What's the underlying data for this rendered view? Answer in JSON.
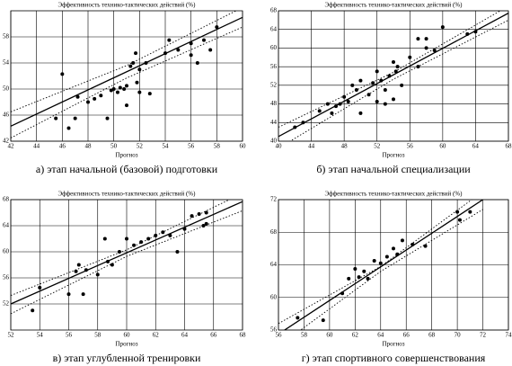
{
  "chart_data": [
    {
      "type": "scatter",
      "title": "а) этап начальной (базовой) подготовки",
      "ylabel": "Эффективность технико-тактических действий (%)",
      "xlabel": "Прогноз",
      "color": "#000000",
      "grid": true,
      "xlim": [
        42,
        60
      ],
      "xticks": [
        42,
        44,
        46,
        48,
        50,
        52,
        54,
        56,
        58,
        60
      ],
      "ylim": [
        42,
        62
      ],
      "yticks": [
        42,
        46,
        50,
        54,
        58
      ],
      "x": [
        45.5,
        46,
        46.5,
        47,
        47.2,
        48,
        48.5,
        49,
        49.5,
        49.8,
        50,
        50.3,
        50.5,
        50.8,
        51,
        51,
        51.3,
        51.5,
        51.7,
        51.8,
        52,
        52,
        52.5,
        52.8,
        54,
        54.3,
        55,
        56,
        56,
        56.5,
        57,
        57.5,
        58
      ],
      "values": [
        45.5,
        52.3,
        44,
        45.5,
        48.8,
        48,
        48.5,
        49,
        45.5,
        49.8,
        50,
        49.5,
        50.2,
        50,
        47.5,
        50.5,
        53.5,
        54,
        55.5,
        51,
        49.5,
        53,
        54,
        49.3,
        55.5,
        57.5,
        56,
        55.2,
        57,
        54,
        57.5,
        56,
        59.5
      ],
      "fit": {
        "x": [
          42,
          60
        ],
        "y": [
          44.3,
          61
        ]
      },
      "upper": {
        "x": [
          42,
          51,
          60
        ],
        "y": [
          46.5,
          53.6,
          62.5
        ]
      },
      "lower": {
        "x": [
          42,
          51,
          60
        ],
        "y": [
          42.5,
          51.7,
          59.5
        ]
      }
    },
    {
      "type": "scatter",
      "title": "б) этап начальной специализации",
      "ylabel": "Эффективность технико-тактических действий (%)",
      "xlabel": "Прогноз",
      "color": "#000000",
      "grid": true,
      "xlim": [
        40,
        68
      ],
      "xticks": [
        40,
        44,
        48,
        52,
        56,
        60,
        64,
        68
      ],
      "ylim": [
        40,
        68
      ],
      "yticks": [
        40,
        44,
        48,
        52,
        56,
        60,
        64,
        68
      ],
      "x": [
        42,
        43,
        45,
        46,
        46.5,
        47,
        47.5,
        48,
        48.5,
        49,
        49.5,
        50,
        50,
        51,
        51.5,
        52,
        52,
        52.5,
        53,
        53,
        53.5,
        54,
        54,
        54.3,
        54.5,
        55,
        56,
        57,
        57,
        58,
        58,
        59,
        60,
        63,
        64
      ],
      "values": [
        43,
        44,
        46.5,
        48,
        46,
        47.5,
        48,
        49.5,
        48.5,
        52,
        51,
        46,
        53,
        50,
        52.5,
        48.5,
        55,
        53,
        48,
        51,
        54,
        57,
        49,
        55,
        56,
        52,
        58,
        56,
        62,
        60,
        62,
        59.5,
        64.5,
        63,
        63.5
      ],
      "fit": {
        "x": [
          40,
          68
        ],
        "y": [
          41,
          67.5
        ]
      },
      "upper": {
        "x": [
          40,
          54,
          68
        ],
        "y": [
          43,
          54.8,
          69
        ]
      },
      "lower": {
        "x": [
          40,
          54,
          68
        ],
        "y": [
          38.5,
          53.3,
          66
        ]
      }
    },
    {
      "type": "scatter",
      "title": "в) этап углубленной тренировки",
      "ylabel": "Эффективность технико-тактических действий (%)",
      "xlabel": "Прогноз",
      "color": "#000000",
      "grid": true,
      "xlim": [
        52,
        68
      ],
      "xticks": [
        52,
        54,
        56,
        58,
        60,
        62,
        64,
        66,
        68
      ],
      "ylim": [
        48,
        68
      ],
      "yticks": [
        52,
        56,
        60,
        64,
        68
      ],
      "x": [
        53.5,
        54,
        56,
        56.5,
        56.7,
        57,
        57.2,
        58,
        58.5,
        58.7,
        59,
        59.5,
        60,
        60.5,
        61,
        61.5,
        62,
        62.5,
        63,
        63.5,
        64,
        64.5,
        65,
        65.3,
        65.5,
        65.5
      ],
      "values": [
        51,
        54.5,
        53.5,
        57,
        58,
        53.5,
        57.2,
        56.5,
        62,
        58.5,
        58,
        60,
        62,
        61,
        61.5,
        62,
        62.5,
        63,
        62.5,
        60,
        63.5,
        65.5,
        65.8,
        64,
        66,
        64.3
      ],
      "fit": {
        "x": [
          52,
          68
        ],
        "y": [
          52,
          67.7
        ]
      },
      "upper": {
        "x": [
          52,
          60,
          68
        ],
        "y": [
          53.3,
          60.3,
          69
        ]
      },
      "lower": {
        "x": [
          52,
          60,
          68
        ],
        "y": [
          50.5,
          59.3,
          66.3
        ]
      }
    },
    {
      "type": "scatter",
      "title": "г) этап спортивного совершенствования",
      "ylabel": "Эффективность технико-тактических действий (%)",
      "xlabel": "Прогноз",
      "color": "#000000",
      "grid": true,
      "xlim": [
        56,
        74
      ],
      "xticks": [
        56,
        58,
        60,
        62,
        64,
        66,
        68,
        70,
        72,
        74
      ],
      "ylim": [
        56,
        72
      ],
      "yticks": [
        56,
        60,
        64,
        68,
        72
      ],
      "x": [
        57.5,
        59.5,
        61,
        61.5,
        62,
        62.3,
        62.7,
        63,
        63.5,
        64,
        64.5,
        65,
        65.3,
        65.7,
        66.5,
        67.5,
        70,
        70.2,
        71
      ],
      "values": [
        57.5,
        57.2,
        60.5,
        62.3,
        63.5,
        62.5,
        63.2,
        62.3,
        64.5,
        64.2,
        65,
        66,
        65.3,
        67,
        66.5,
        66.3,
        70.5,
        69.5,
        70.5
      ],
      "fit": {
        "x": [
          56,
          72
        ],
        "y": [
          55.5,
          72
        ]
      },
      "upper": {
        "x": [
          56,
          64,
          72
        ],
        "y": [
          56.8,
          63.8,
          73
        ]
      },
      "lower": {
        "x": [
          56,
          64,
          72
        ],
        "y": [
          54,
          63.2,
          70.8
        ]
      }
    }
  ]
}
